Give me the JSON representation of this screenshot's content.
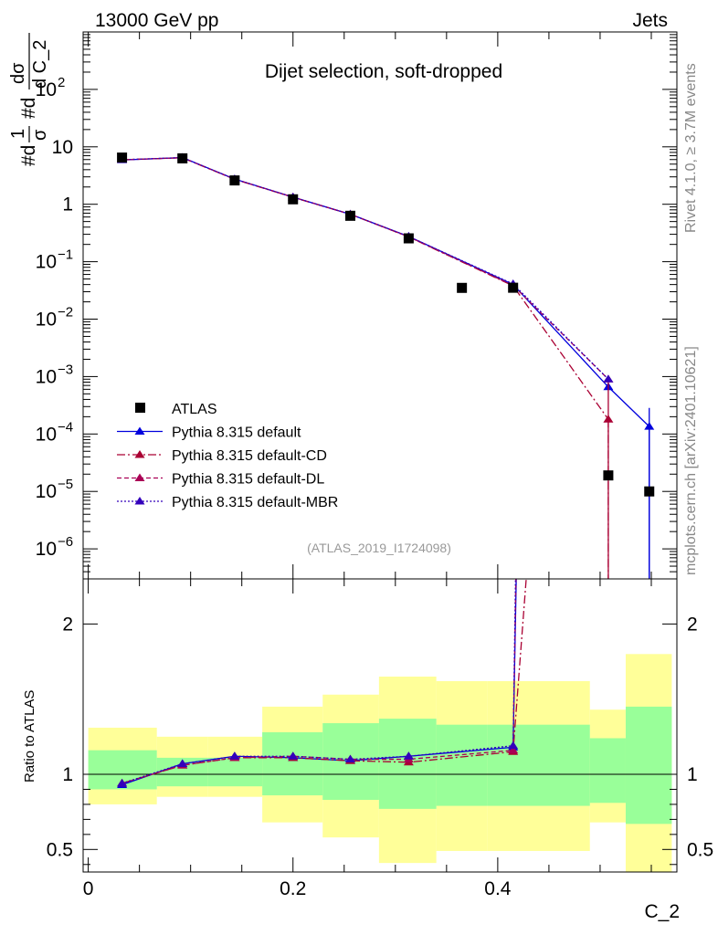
{
  "header": {
    "energy_label": "13000 GeV pp",
    "category_label": "Jets"
  },
  "side": {
    "rivet_label": "Rivet 4.1.0, ≥ 3.7M events",
    "source_label": "mcplots.cern.ch [arXiv:2401.10621]"
  },
  "chart_data": {
    "type": "scatter",
    "title": "Dijet selection, soft-dropped",
    "analysis_id": "(ATLAS_2019_I1724098)",
    "xlabel": "C_2",
    "ylabel_main_pieces": [
      "#d",
      "1",
      "σ",
      "#d",
      "dσ",
      "d C_2"
    ],
    "ylabel_ratio": "Ratio to ATLAS",
    "xlim": [
      -0.005,
      0.575
    ],
    "ylim_main": [
      3e-07,
      1000
    ],
    "ylim_ratio": [
      0.35,
      2.3
    ],
    "x_ticks": [
      0,
      0.2,
      0.4
    ],
    "x_tick_labels": [
      "0",
      "0.2",
      "0.4"
    ],
    "ratio_ticks": [
      0.5,
      1,
      2
    ],
    "ratio_tick_labels": [
      "0.5",
      "1",
      "2"
    ],
    "main_ticks": [
      {
        "base": "10",
        "exp": "−6",
        "value": 1e-06
      },
      {
        "base": "10",
        "exp": "−5",
        "value": 1e-05
      },
      {
        "base": "10",
        "exp": "−4",
        "value": 0.0001
      },
      {
        "base": "10",
        "exp": "−3",
        "value": 0.001
      },
      {
        "base": "10",
        "exp": "−2",
        "value": 0.01
      },
      {
        "base": "10",
        "exp": "−1",
        "value": 0.1
      },
      {
        "base": "1",
        "exp": "",
        "value": 1
      },
      {
        "base": "10",
        "exp": "",
        "value": 10
      },
      {
        "base": "10",
        "exp": "2",
        "value": 100
      }
    ],
    "bins": [
      {
        "lo": 0.0,
        "hi": 0.067
      },
      {
        "lo": 0.067,
        "hi": 0.117
      },
      {
        "lo": 0.117,
        "hi": 0.17
      },
      {
        "lo": 0.17,
        "hi": 0.229
      },
      {
        "lo": 0.229,
        "hi": 0.284
      },
      {
        "lo": 0.284,
        "hi": 0.34
      },
      {
        "lo": 0.34,
        "hi": 0.39
      },
      {
        "lo": 0.39,
        "hi": 0.49
      },
      {
        "lo": 0.49,
        "hi": 0.525
      },
      {
        "lo": 0.525,
        "hi": 0.57
      }
    ],
    "ratio_bands": {
      "yellow_lo": [
        0.8,
        0.85,
        0.85,
        0.68,
        0.58,
        0.41,
        0.49,
        0.49,
        0.68,
        0.33
      ],
      "yellow_hi": [
        1.31,
        1.25,
        1.25,
        1.45,
        1.53,
        1.65,
        1.62,
        1.62,
        1.43,
        1.8
      ],
      "green_lo": [
        0.9,
        0.92,
        0.92,
        0.86,
        0.83,
        0.77,
        0.79,
        0.79,
        0.81,
        0.67
      ],
      "green_hi": [
        1.16,
        1.11,
        1.11,
        1.28,
        1.34,
        1.37,
        1.33,
        1.33,
        1.24,
        1.45
      ]
    },
    "data": {
      "name": "ATLAS",
      "x": [
        0.033,
        0.092,
        0.143,
        0.2,
        0.256,
        0.313,
        0.365,
        0.415,
        0.508,
        0.548
      ],
      "y": [
        6.5,
        6.3,
        2.6,
        1.22,
        0.63,
        0.255,
        0.035,
        0.0352,
        1.9e-05,
        1e-05
      ]
    },
    "series": [
      {
        "name": "Pythia 8.315 default",
        "color": "#0000dd",
        "dash": "",
        "x": [
          0.033,
          0.092,
          0.143,
          0.2,
          0.256,
          0.313,
          0.415,
          0.508,
          0.548
        ],
        "y": [
          5.9,
          6.5,
          2.75,
          1.33,
          0.67,
          0.275,
          0.04,
          0.00066,
          0.000135
        ],
        "yerr": [
          0,
          0,
          0,
          0,
          0,
          0,
          0,
          5e-05,
          0.00015
        ],
        "ratio": [
          0.93,
          1.07,
          1.12,
          1.11,
          1.09,
          1.12,
          1.18,
          35,
          13.5
        ]
      },
      {
        "name": "Pythia 8.315 default-CD",
        "color": "#aa0033",
        "dash": "9,3,2,3",
        "x": [
          0.033,
          0.092,
          0.143,
          0.2,
          0.256,
          0.313,
          0.415,
          0.508
        ],
        "y": [
          5.95,
          6.45,
          2.72,
          1.32,
          0.67,
          0.27,
          0.038,
          0.00018
        ],
        "yerr": [
          0,
          0,
          0,
          0,
          0,
          0,
          0,
          0.0008
        ],
        "ratio": [
          0.94,
          1.06,
          1.11,
          1.11,
          1.09,
          1.08,
          1.15,
          9.5
        ]
      },
      {
        "name": "Pythia 8.315 default-DL",
        "color": "#aa0055",
        "dash": "5,3",
        "x": [
          0.033,
          0.092,
          0.143,
          0.2,
          0.256,
          0.313,
          0.415,
          0.508
        ],
        "y": [
          5.95,
          6.45,
          2.73,
          1.33,
          0.67,
          0.272,
          0.0385,
          0.0009
        ],
        "yerr": [
          0,
          0,
          0,
          0,
          0,
          0,
          0,
          0
        ],
        "ratio": [
          0.94,
          1.06,
          1.11,
          1.12,
          1.1,
          1.1,
          1.16,
          40
        ]
      },
      {
        "name": "Pythia 8.315 default-MBR",
        "color": "#3300bb",
        "dash": "2,2",
        "x": [
          0.033,
          0.092,
          0.143,
          0.2,
          0.256,
          0.313,
          0.415,
          0.508
        ],
        "y": [
          5.95,
          6.5,
          2.75,
          1.33,
          0.67,
          0.275,
          0.041,
          0.0009
        ],
        "yerr": [
          0,
          0,
          0,
          0,
          0,
          0,
          0,
          0
        ],
        "ratio": [
          0.94,
          1.07,
          1.12,
          1.12,
          1.1,
          1.12,
          1.19,
          45
        ]
      }
    ]
  }
}
